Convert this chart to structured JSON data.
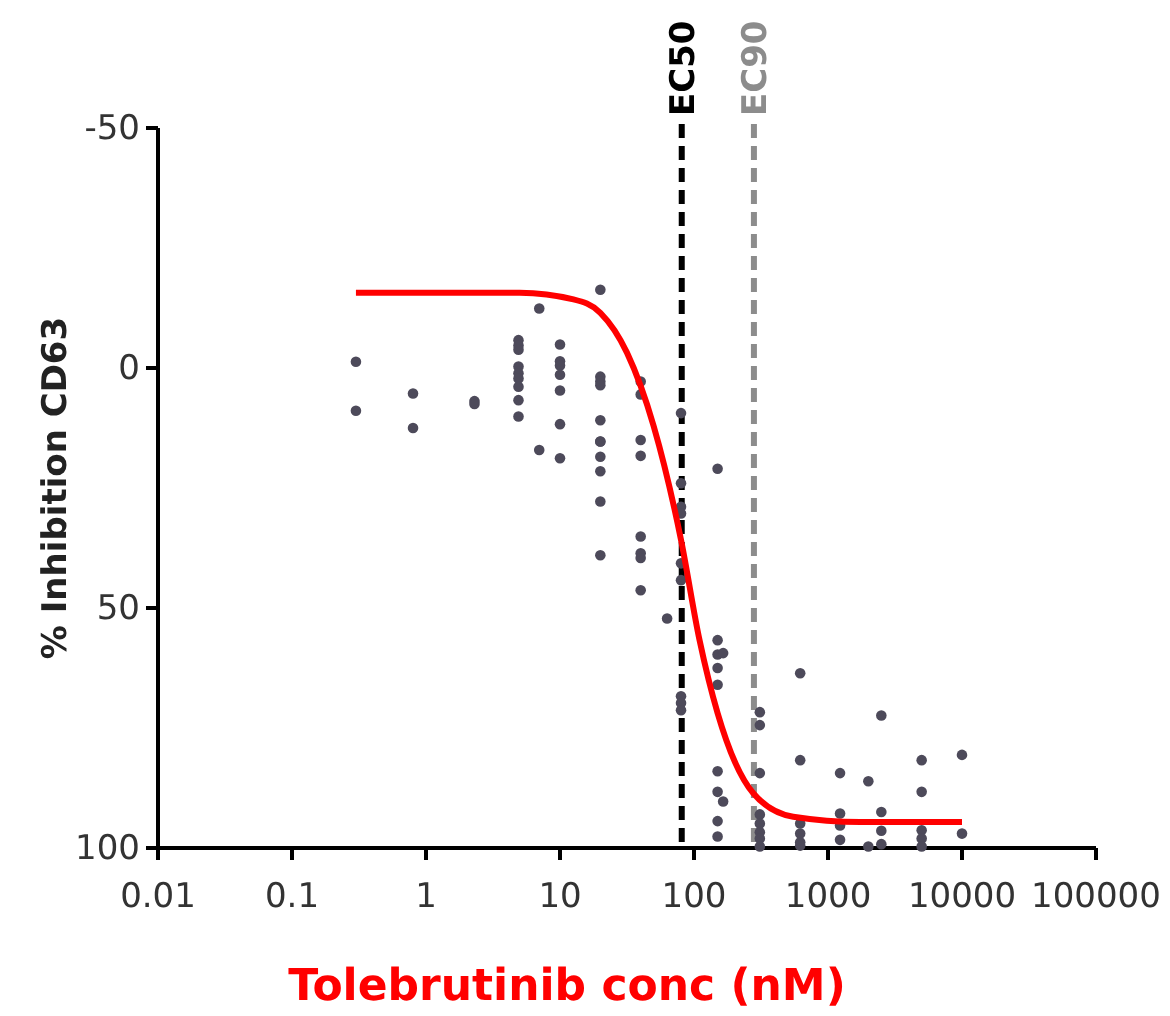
{
  "chart_data": {
    "type": "scatter",
    "xlabel": "Tolebrutinib conc (nM)",
    "ylabel": "% Inhibition CD63",
    "log": "x",
    "xlim": [
      0.01,
      100000
    ],
    "xticks": [
      0.01,
      0.1,
      1,
      10,
      100,
      1000,
      10000,
      100000
    ],
    "ylim": [
      100,
      -50
    ],
    "yticks": [
      -50,
      0,
      50,
      100
    ],
    "grid": false,
    "marker": "circle",
    "series": [
      {
        "color": "#4d4a5a",
        "x": [
          0.3,
          0.3,
          0.8,
          0.8,
          2.3,
          2.3,
          4.9,
          4.9,
          4.9,
          4.9,
          4.9,
          4.9,
          4.9,
          4.9,
          4.9,
          7,
          7,
          10,
          10,
          10,
          10,
          10,
          10,
          10,
          20,
          20,
          20,
          20,
          20,
          20,
          20,
          20,
          20,
          20,
          20,
          40,
          40,
          40,
          40,
          40,
          40,
          40,
          40,
          63,
          80,
          80,
          80,
          80,
          80,
          80,
          80,
          80,
          80,
          150,
          150,
          150,
          150,
          150,
          150,
          150,
          150,
          150,
          165,
          165,
          310,
          310,
          310,
          310,
          310,
          310,
          310,
          310,
          620,
          620,
          620,
          620,
          620,
          620,
          1230,
          1230,
          1230,
          1230,
          2000,
          2000,
          2500,
          2500,
          2500,
          2500,
          5000,
          5000,
          5000,
          5000,
          5000,
          10000,
          10000
        ],
        "values": [
          -1.3,
          8.9,
          5.3,
          12.5,
          6.9,
          7.5,
          -5.8,
          -4.7,
          -3.8,
          -0.3,
          1.1,
          2.2,
          3.9,
          6.7,
          10.1,
          -12.4,
          17.1,
          -4.9,
          -1.4,
          -0.5,
          1.4,
          4.7,
          11.7,
          18.8,
          -16.3,
          1.8,
          2.8,
          3.6,
          10.9,
          15.3,
          15.3,
          18.5,
          21.5,
          27.8,
          39,
          2.8,
          5.5,
          15,
          18.3,
          35.1,
          38.6,
          39.6,
          46.3,
          52.2,
          9.4,
          24,
          28.9,
          30.3,
          40.7,
          44.2,
          68.4,
          69.8,
          71.3,
          21,
          56.7,
          59.7,
          62.5,
          66,
          84,
          88.3,
          94.4,
          97.6,
          59.4,
          90.3,
          71.7,
          74.4,
          84.4,
          93,
          94.9,
          96.7,
          98,
          99.7,
          63.6,
          81.7,
          94.9,
          97,
          98.8,
          99.5,
          84.4,
          92.8,
          95.3,
          98.3,
          86.1,
          99.7,
          72.4,
          92.5,
          96.4,
          99.2,
          81.7,
          88.3,
          96.3,
          98,
          99.7,
          80.6,
          97
        ]
      },
      {
        "type": "line",
        "color": "#ff0000",
        "marker": "none",
        "line_style": "solid",
        "x": [
          0.3,
          5,
          12.6,
          20,
          31.6,
          50,
          80,
          110,
          150,
          174,
          277,
          550,
          1740,
          10000
        ],
        "values": [
          -15.7,
          -15.7,
          -14.3,
          -11.5,
          -3.2,
          12.1,
          35.8,
          56.7,
          71.9,
          77.5,
          88.6,
          93.5,
          94.6,
          94.6
        ]
      }
    ],
    "ref_lines": [
      {
        "axis": "x",
        "value": 81,
        "label": "EC50",
        "color": "#000000",
        "line_style": "dashed"
      },
      {
        "axis": "x",
        "value": 280,
        "label": "EC90",
        "color": "#8c8c8c",
        "line_style": "dashed"
      }
    ]
  }
}
